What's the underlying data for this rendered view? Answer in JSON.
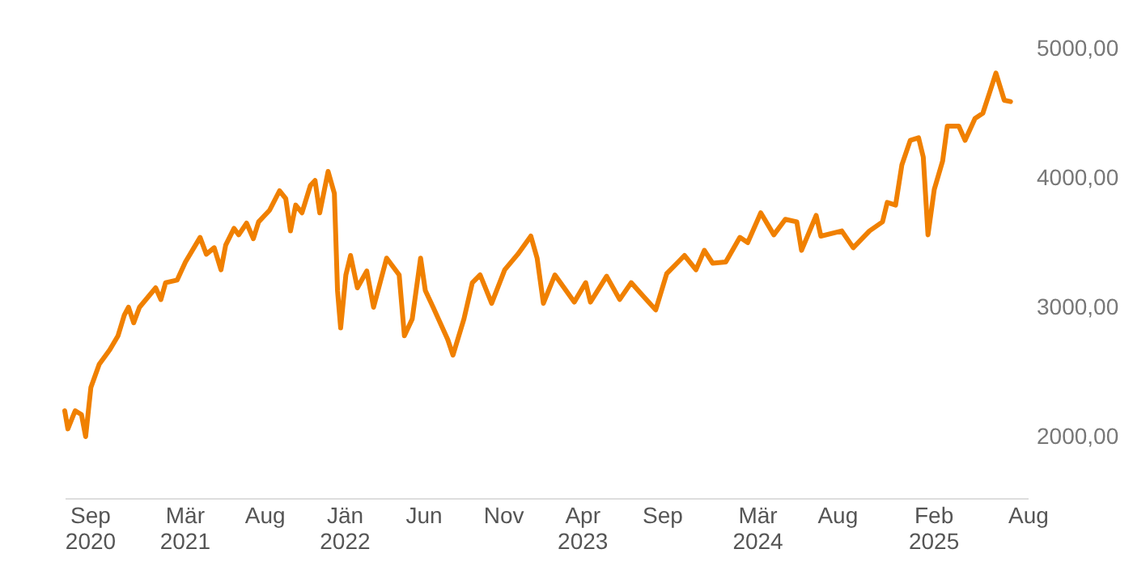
{
  "chart_data": {
    "type": "line",
    "x": [
      "2020-07-15",
      "2020-07-21",
      "2020-08-04",
      "2020-08-16",
      "2020-08-24",
      "2020-09-03",
      "2020-09-19",
      "2020-10-09",
      "2020-10-25",
      "2020-11-06",
      "2020-11-14",
      "2020-11-24",
      "2020-12-05",
      "2021-01-05",
      "2021-01-15",
      "2021-01-24",
      "2021-02-15",
      "2021-03-03",
      "2021-03-31",
      "2021-04-12",
      "2021-04-27",
      "2021-05-10",
      "2021-05-19",
      "2021-06-04",
      "2021-06-13",
      "2021-06-28",
      "2021-07-11",
      "2021-07-21",
      "2021-08-11",
      "2021-08-30",
      "2021-09-11",
      "2021-09-20",
      "2021-09-30",
      "2021-10-12",
      "2021-10-28",
      "2021-11-06",
      "2021-11-15",
      "2021-12-01",
      "2021-12-13",
      "2021-12-19",
      "2021-12-25",
      "2022-01-04",
      "2022-01-13",
      "2022-01-26",
      "2022-02-13",
      "2022-02-26",
      "2022-03-23",
      "2022-04-16",
      "2022-04-26",
      "2022-05-11",
      "2022-05-27",
      "2022-06-05",
      "2022-06-20",
      "2022-07-18",
      "2022-07-28",
      "2022-08-18",
      "2022-09-03",
      "2022-09-18",
      "2022-10-10",
      "2022-11-04",
      "2022-11-29",
      "2022-12-24",
      "2023-01-05",
      "2023-01-17",
      "2023-02-08",
      "2023-03-17",
      "2023-04-08",
      "2023-04-17",
      "2023-05-18",
      "2023-06-12",
      "2023-07-04",
      "2023-07-26",
      "2023-08-20",
      "2023-09-10",
      "2023-10-02",
      "2023-10-14",
      "2023-11-05",
      "2023-11-21",
      "2023-12-07",
      "2024-01-01",
      "2024-01-28",
      "2024-02-12",
      "2024-03-08",
      "2024-04-02",
      "2024-04-24",
      "2024-05-16",
      "2024-05-25",
      "2024-06-22",
      "2024-07-01",
      "2024-08-10",
      "2024-09-01",
      "2024-10-02",
      "2024-10-27",
      "2024-11-05",
      "2024-11-21",
      "2024-12-03",
      "2024-12-19",
      "2025-01-04",
      "2025-01-13",
      "2025-01-22",
      "2025-02-03",
      "2025-02-19",
      "2025-02-28",
      "2025-03-22",
      "2025-04-03",
      "2025-04-22",
      "2025-05-07",
      "2025-05-20",
      "2025-06-01",
      "2025-06-17",
      "2025-06-29"
    ],
    "series": [
      {
        "color": "#f08000",
        "values": [
          2200,
          2060,
          2200,
          2170,
          2000,
          2380,
          2560,
          2670,
          2780,
          2940,
          3000,
          2880,
          3000,
          3150,
          3060,
          3190,
          3210,
          3350,
          3540,
          3410,
          3460,
          3290,
          3480,
          3610,
          3560,
          3650,
          3530,
          3660,
          3750,
          3900,
          3840,
          3590,
          3790,
          3730,
          3940,
          3980,
          3730,
          4050,
          3880,
          3130,
          2840,
          3250,
          3400,
          3150,
          3280,
          3000,
          3380,
          3250,
          2780,
          2910,
          3380,
          3130,
          3000,
          2750,
          2630,
          2910,
          3190,
          3250,
          3030,
          3290,
          3410,
          3550,
          3380,
          3030,
          3250,
          3040,
          3190,
          3040,
          3240,
          3060,
          3190,
          3090,
          2980,
          3260,
          3350,
          3400,
          3290,
          3440,
          3340,
          3350,
          3540,
          3500,
          3730,
          3560,
          3680,
          3660,
          3440,
          3710,
          3550,
          3590,
          3460,
          3590,
          3660,
          3810,
          3790,
          4100,
          4290,
          4310,
          4160,
          3560,
          3910,
          4130,
          4400,
          4400,
          4290,
          4460,
          4500,
          4660,
          4810,
          4600,
          4590
        ]
      }
    ],
    "xticks": [
      {
        "value": "2020-09-01",
        "label": "Sep\n2020"
      },
      {
        "value": "2021-03-01",
        "label": "Mär\n2021"
      },
      {
        "value": "2021-08-01",
        "label": "Aug"
      },
      {
        "value": "2022-01-01",
        "label": "Jän\n2022"
      },
      {
        "value": "2022-06-01",
        "label": "Jun"
      },
      {
        "value": "2022-11-01",
        "label": "Nov"
      },
      {
        "value": "2023-04-01",
        "label": "Apr\n2023"
      },
      {
        "value": "2023-09-01",
        "label": "Sep"
      },
      {
        "value": "2024-03-01",
        "label": "Mär\n2024"
      },
      {
        "value": "2024-08-01",
        "label": "Aug"
      },
      {
        "value": "2025-02-01",
        "label": "Feb\n2025"
      },
      {
        "value": "2025-08-01",
        "label": "Aug"
      }
    ],
    "xlim": [
      "2020-07-15",
      "2025-08-01"
    ],
    "ylim": [
      2000,
      5000
    ],
    "yticks": [
      {
        "value": 2000,
        "label": "2000,00"
      },
      {
        "value": 3000,
        "label": "3000,00"
      },
      {
        "value": 4000,
        "label": "4000,00"
      },
      {
        "value": 5000,
        "label": "5000,00"
      }
    ],
    "grid": false,
    "legend": false
  }
}
